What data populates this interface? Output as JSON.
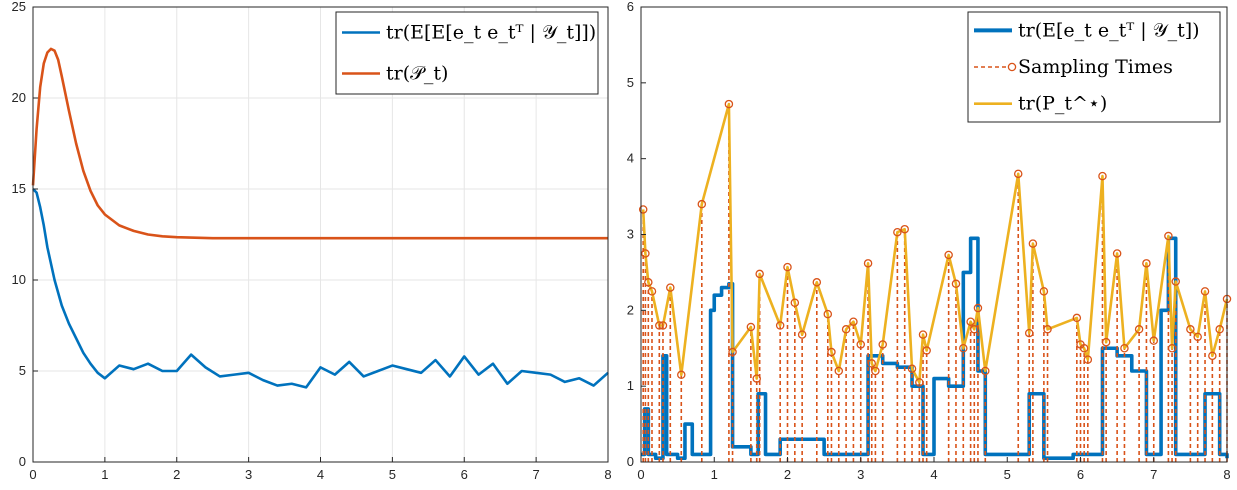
{
  "chart_data": [
    {
      "type": "line",
      "title": "",
      "xlabel": "",
      "ylabel": "",
      "xlim": [
        0,
        8
      ],
      "ylim": [
        0,
        25
      ],
      "xticks": [
        "0",
        "1",
        "2",
        "3",
        "4",
        "5",
        "6",
        "7",
        "8"
      ],
      "yticks": [
        "0",
        "5",
        "10",
        "15",
        "20",
        "25"
      ],
      "grid": true,
      "legend_position": "top-right",
      "series": [
        {
          "name": "tr(E[E[e_t e_t^⊤ | 𝒴_t]])",
          "legend_label": "tr(E[E[e_t e_tᵀ | 𝒴_t]])",
          "color": "#0072BD",
          "x": [
            0,
            0.05,
            0.1,
            0.15,
            0.2,
            0.3,
            0.4,
            0.5,
            0.6,
            0.7,
            0.8,
            0.9,
            1.0,
            1.2,
            1.4,
            1.6,
            1.8,
            2.0,
            2.2,
            2.4,
            2.6,
            2.8,
            3.0,
            3.2,
            3.4,
            3.6,
            3.8,
            4.0,
            4.2,
            4.4,
            4.6,
            4.8,
            5.0,
            5.2,
            5.4,
            5.6,
            5.8,
            6.0,
            6.2,
            6.4,
            6.6,
            6.8,
            7.0,
            7.2,
            7.4,
            7.6,
            7.8,
            8.0
          ],
          "y": [
            15.0,
            14.8,
            14.0,
            13.0,
            11.8,
            10.0,
            8.6,
            7.6,
            6.8,
            6.0,
            5.4,
            4.9,
            4.6,
            5.3,
            5.1,
            5.4,
            5.0,
            5.0,
            5.9,
            5.2,
            4.7,
            4.8,
            4.9,
            4.5,
            4.2,
            4.3,
            4.1,
            5.2,
            4.8,
            5.5,
            4.7,
            5.0,
            5.3,
            5.1,
            4.9,
            5.6,
            4.7,
            5.8,
            4.8,
            5.4,
            4.3,
            5.0,
            4.9,
            4.8,
            4.4,
            4.6,
            4.2,
            4.9
          ]
        },
        {
          "name": "tr(𝒫_t)",
          "legend_label": "tr(𝒫_t)",
          "color": "#D95319",
          "x": [
            0,
            0.05,
            0.1,
            0.15,
            0.2,
            0.25,
            0.3,
            0.35,
            0.4,
            0.5,
            0.6,
            0.7,
            0.8,
            0.9,
            1.0,
            1.2,
            1.4,
            1.6,
            1.8,
            2.0,
            2.5,
            3.0,
            4.0,
            5.0,
            6.0,
            7.0,
            8.0
          ],
          "y": [
            15.2,
            18.3,
            20.6,
            21.9,
            22.5,
            22.7,
            22.6,
            22.1,
            21.2,
            19.3,
            17.5,
            16.0,
            14.9,
            14.1,
            13.6,
            13.0,
            12.7,
            12.5,
            12.4,
            12.35,
            12.3,
            12.3,
            12.3,
            12.3,
            12.3,
            12.3,
            12.3
          ]
        }
      ]
    },
    {
      "type": "line",
      "title": "",
      "xlabel": "",
      "ylabel": "",
      "xlim": [
        0,
        8
      ],
      "ylim": [
        0,
        6
      ],
      "xticks": [
        "0",
        "1",
        "2",
        "3",
        "4",
        "5",
        "6",
        "7",
        "8"
      ],
      "yticks": [
        "0",
        "1",
        "2",
        "3",
        "4",
        "5",
        "6"
      ],
      "grid": false,
      "legend_position": "top-right",
      "series": [
        {
          "name": "tr(E[e_t e_t^⊤ | 𝒴_t])",
          "legend_label": "tr(E[e_t e_tᵀ | 𝒴_t])",
          "color": "#0072BD",
          "x": [
            0,
            0.05,
            0.1,
            0.2,
            0.3,
            0.35,
            0.5,
            0.6,
            0.7,
            0.85,
            0.95,
            1.0,
            1.1,
            1.2,
            1.25,
            1.5,
            1.6,
            1.7,
            1.9,
            2.2,
            2.5,
            2.7,
            3.0,
            3.1,
            3.3,
            3.5,
            3.7,
            3.85,
            4.0,
            4.2,
            4.4,
            4.5,
            4.6,
            4.7,
            4.9,
            5.0,
            5.3,
            5.5,
            5.7,
            5.9,
            6.1,
            6.3,
            6.5,
            6.7,
            6.9,
            7.1,
            7.2,
            7.3,
            7.5,
            7.7,
            7.9,
            8.0
          ],
          "y": [
            0.1,
            0.7,
            0.1,
            0.05,
            1.4,
            0.1,
            0.05,
            0.5,
            0.1,
            0.1,
            2.0,
            2.2,
            2.3,
            2.35,
            0.2,
            0.1,
            0.9,
            0.1,
            0.3,
            0.3,
            0.1,
            0.1,
            0.1,
            1.4,
            1.3,
            1.25,
            1.0,
            0.1,
            1.1,
            1.0,
            2.5,
            2.95,
            1.2,
            0.1,
            0.1,
            0.1,
            0.9,
            0.05,
            0.05,
            0.1,
            0.1,
            1.5,
            1.4,
            1.2,
            0.1,
            2.0,
            2.95,
            0.1,
            0.1,
            0.9,
            0.1,
            0.05
          ]
        },
        {
          "name": "Sampling Times",
          "legend_label": "Sampling Times",
          "color": "#D95319",
          "x": [
            0.03,
            0.06,
            0.1,
            0.15,
            0.25,
            0.3,
            0.4,
            0.55,
            0.83,
            1.2,
            1.25,
            1.5,
            1.58,
            1.62,
            1.9,
            2.0,
            2.1,
            2.2,
            2.4,
            2.55,
            2.6,
            2.7,
            2.8,
            2.9,
            3.0,
            3.1,
            3.15,
            3.2,
            3.3,
            3.5,
            3.6,
            3.7,
            3.8,
            3.85,
            3.9,
            4.2,
            4.3,
            4.4,
            4.5,
            4.55,
            4.6,
            4.7,
            5.15,
            5.3,
            5.35,
            5.5,
            5.55,
            5.95,
            6.0,
            6.05,
            6.1,
            6.3,
            6.35,
            6.5,
            6.6,
            6.8,
            6.9,
            7.0,
            7.2,
            7.25,
            7.3,
            7.5,
            7.6,
            7.7,
            7.8,
            7.9,
            8.0
          ],
          "y": [
            3.33,
            2.75,
            2.37,
            2.25,
            1.8,
            1.8,
            2.3,
            1.15,
            3.4,
            4.72,
            1.45,
            1.78,
            1.1,
            2.48,
            1.8,
            2.57,
            2.1,
            1.68,
            2.37,
            1.95,
            1.45,
            1.2,
            1.75,
            1.85,
            1.55,
            2.62,
            1.3,
            1.2,
            1.55,
            3.03,
            3.07,
            1.23,
            1.05,
            1.68,
            1.47,
            2.73,
            2.35,
            1.5,
            1.85,
            1.75,
            2.03,
            1.2,
            3.8,
            1.7,
            2.88,
            2.25,
            1.75,
            1.9,
            1.55,
            1.5,
            1.35,
            3.77,
            1.58,
            2.75,
            1.5,
            1.75,
            2.62,
            1.6,
            2.98,
            1.5,
            2.38,
            1.75,
            1.65,
            2.25,
            1.4,
            1.75,
            2.15
          ]
        },
        {
          "name": "tr(P_t^⋆)",
          "legend_label": "tr(P_t^⋆)",
          "color": "#EDB120",
          "x": [
            0.03,
            0.06,
            0.1,
            0.15,
            0.25,
            0.3,
            0.4,
            0.55,
            0.83,
            1.2,
            1.25,
            1.5,
            1.58,
            1.62,
            1.9,
            2.0,
            2.1,
            2.2,
            2.4,
            2.55,
            2.6,
            2.7,
            2.8,
            2.9,
            3.0,
            3.1,
            3.15,
            3.2,
            3.3,
            3.5,
            3.6,
            3.7,
            3.8,
            3.85,
            3.9,
            4.2,
            4.3,
            4.4,
            4.5,
            4.55,
            4.6,
            4.7,
            5.15,
            5.3,
            5.35,
            5.5,
            5.55,
            5.95,
            6.0,
            6.05,
            6.1,
            6.3,
            6.35,
            6.5,
            6.6,
            6.8,
            6.9,
            7.0,
            7.2,
            7.25,
            7.3,
            7.5,
            7.6,
            7.7,
            7.8,
            7.9,
            8.0
          ],
          "y": [
            3.33,
            2.75,
            2.37,
            2.25,
            1.8,
            1.8,
            2.3,
            1.15,
            3.4,
            4.72,
            1.45,
            1.78,
            1.1,
            2.48,
            1.8,
            2.57,
            2.1,
            1.68,
            2.37,
            1.95,
            1.45,
            1.2,
            1.75,
            1.85,
            1.55,
            2.62,
            1.3,
            1.2,
            1.55,
            3.03,
            3.07,
            1.23,
            1.05,
            1.68,
            1.47,
            2.73,
            2.35,
            1.5,
            1.85,
            1.75,
            2.03,
            1.2,
            3.8,
            1.7,
            2.88,
            2.25,
            1.75,
            1.9,
            1.55,
            1.5,
            1.35,
            3.77,
            1.58,
            2.75,
            1.5,
            1.75,
            2.62,
            1.6,
            2.98,
            1.5,
            2.38,
            1.75,
            1.65,
            2.25,
            1.4,
            1.75,
            2.15
          ]
        }
      ]
    }
  ]
}
